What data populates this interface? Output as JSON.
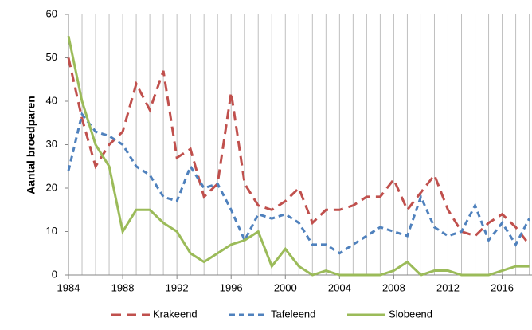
{
  "chart_data": {
    "type": "line",
    "y_label": "Aantal broedparen",
    "x": [
      1984,
      1985,
      1986,
      1987,
      1988,
      1989,
      1990,
      1991,
      1992,
      1993,
      1994,
      1995,
      1996,
      1997,
      1998,
      1999,
      2000,
      2001,
      2002,
      2003,
      2004,
      2005,
      2006,
      2007,
      2008,
      2009,
      2010,
      2011,
      2012,
      2013,
      2014,
      2015,
      2016,
      2017,
      2018
    ],
    "series": [
      {
        "name": "Krakeend",
        "color": "#c0504d",
        "line_style": "long-dash",
        "values": [
          50,
          36,
          25,
          30,
          33,
          44,
          38,
          47,
          27,
          29,
          18,
          21,
          42,
          21,
          16,
          15,
          17,
          20,
          12,
          15,
          15,
          16,
          18,
          18,
          22,
          15,
          19,
          23,
          15,
          10,
          9,
          12,
          14,
          11,
          7
        ]
      },
      {
        "name": "Tafeleend",
        "color": "#4f81bd",
        "line_style": "dash",
        "values": [
          24,
          37,
          33,
          32,
          30,
          25,
          23,
          18,
          17,
          25,
          20,
          21,
          15,
          8,
          14,
          13,
          14,
          12,
          7,
          7,
          5,
          7,
          9,
          11,
          10,
          9,
          18,
          11,
          9,
          10,
          16,
          8,
          12,
          7,
          13
        ]
      },
      {
        "name": "Slobeend",
        "color": "#9bbb59",
        "line_style": "solid",
        "values": [
          55,
          40,
          30,
          25,
          10,
          15,
          15,
          12,
          10,
          5,
          3,
          5,
          7,
          8,
          10,
          2,
          6,
          2,
          0,
          1,
          0,
          0,
          0,
          0,
          1,
          3,
          0,
          1,
          1,
          0,
          0,
          0,
          1,
          2,
          2
        ]
      }
    ],
    "xlim": [
      1984,
      2018.2
    ],
    "xticks": [
      1984,
      1988,
      1992,
      1996,
      2000,
      2004,
      2008,
      2012,
      2016
    ],
    "ylim": [
      0,
      60
    ],
    "yticks": [
      0,
      10,
      20,
      30,
      40,
      50,
      60
    ],
    "x_grid_each_point": true,
    "legend": "bottom"
  }
}
